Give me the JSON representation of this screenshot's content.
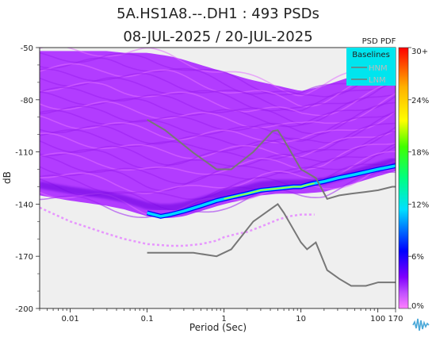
{
  "chart_data": {
    "type": "heatmap",
    "title": "5A.HS1A8.--.DH1 : 493 PSDs",
    "subtitle": "08-JUL-2025 / 20-JUL-2025",
    "xlabel": "Period (Sec)",
    "ylabel": "dB",
    "xscale": "log",
    "xlim": [
      0.004,
      170
    ],
    "ylim": [
      -200,
      -50
    ],
    "xticks": [
      {
        "value": 0.01,
        "label": "0.01"
      },
      {
        "value": 0.1,
        "label": "0.1"
      },
      {
        "value": 1,
        "label": "1"
      },
      {
        "value": 10,
        "label": "10"
      },
      {
        "value": 100,
        "label": "100"
      },
      {
        "value": 170,
        "label": "170"
      }
    ],
    "yticks": [
      {
        "value": -50,
        "label": "-50"
      },
      {
        "value": -80,
        "label": "-80"
      },
      {
        "value": -110,
        "label": "-110"
      },
      {
        "value": -140,
        "label": "-140"
      },
      {
        "value": -170,
        "label": "-170"
      },
      {
        "value": -200,
        "label": "-200"
      }
    ],
    "colorbar": {
      "title": "PSD PDF",
      "ticks": [
        "30+",
        "24%",
        "18%",
        "12%",
        "6%",
        "0%"
      ],
      "colors": [
        "#ff0000",
        "#ffb000",
        "#ffff00",
        "#00ff00",
        "#00e0ff",
        "#0000ff",
        "#8000ff",
        "#ff80ff"
      ]
    },
    "legend": {
      "title": "Baselines",
      "placement": "top-right",
      "background": "#00e5ee",
      "entries": [
        "HNM",
        "LNM"
      ]
    },
    "mode_curve": {
      "x": [
        0.1,
        0.15,
        0.2,
        0.3,
        0.5,
        0.8,
        1,
        2,
        3,
        5,
        8,
        10,
        12,
        15,
        20,
        30,
        50,
        100,
        170
      ],
      "y": [
        -145,
        -147,
        -146,
        -144,
        -141,
        -138,
        -137,
        -134,
        -132,
        -131,
        -130,
        -130,
        -129,
        -128,
        -127,
        -125,
        -123,
        -120,
        -118
      ]
    },
    "upper_envelope": {
      "x": [
        0.004,
        0.01,
        0.03,
        0.05,
        0.1,
        0.2,
        0.3,
        0.5,
        1,
        2,
        5,
        10,
        20,
        50,
        100,
        170
      ],
      "y": [
        -52,
        -52,
        -52,
        -53,
        -53,
        -55,
        -57,
        -60,
        -64,
        -68,
        -72,
        -75,
        -72,
        -66,
        -61,
        -56
      ]
    },
    "lower_envelope": {
      "x": [
        0.004,
        0.01,
        0.03,
        0.05,
        0.1,
        0.15,
        0.2,
        0.3,
        0.5,
        1,
        2,
        3,
        5,
        10,
        20,
        50,
        100,
        170
      ],
      "y": [
        -135,
        -138,
        -141,
        -143,
        -147,
        -148,
        -148,
        -147,
        -144,
        -140,
        -137,
        -135,
        -134,
        -134,
        -133,
        -128,
        -124,
        -121
      ]
    },
    "secondary_low_branch": {
      "x": [
        0.004,
        0.01,
        0.03,
        0.05,
        0.1,
        0.2,
        0.3,
        0.5,
        0.8,
        1,
        1.5,
        2,
        3,
        5,
        7,
        10,
        15
      ],
      "y": [
        -142,
        -150,
        -157,
        -160,
        -163,
        -164,
        -164,
        -163,
        -161,
        -159,
        -157,
        -156,
        -153,
        -149,
        -147,
        -146,
        -146
      ]
    },
    "noise_model_x": [
      0.1,
      0.17,
      0.4,
      0.8,
      1.24,
      2.4,
      4.3,
      5,
      6,
      10,
      12,
      15.6,
      21.9,
      31.6,
      45,
      70,
      101,
      154,
      170
    ],
    "hnm": [
      -91.5,
      -97.4,
      -110.5,
      -120,
      -120,
      -110,
      -98,
      -97.5,
      -103,
      -120,
      -122,
      -125,
      -137,
      -135,
      -134,
      -133,
      -132,
      -130,
      -130
    ],
    "lnm": [
      -168,
      -168,
      -168,
      -170,
      -166,
      -150,
      -142,
      -140,
      -145,
      -162,
      -166,
      -162,
      -178,
      -183,
      -187,
      -187,
      -185,
      -185,
      -185
    ]
  }
}
